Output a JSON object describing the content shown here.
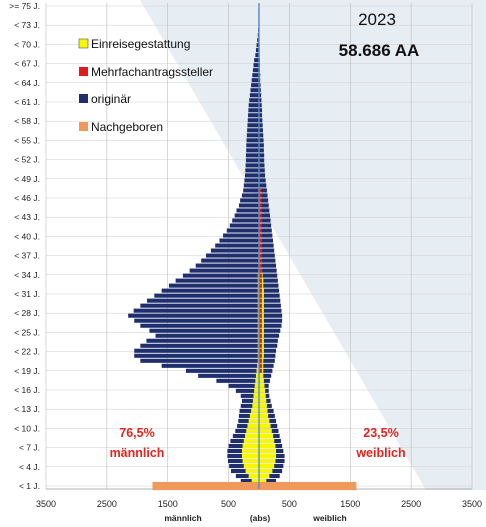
{
  "chart_data": {
    "type": "bar",
    "subtype": "population-pyramid",
    "year": "2023",
    "total": "58.686 AA",
    "y_tick_labels": [
      ">= 75 J.",
      "< 73 J.",
      "< 70 J.",
      "< 67 J.",
      "< 64 J.",
      "< 61 J.",
      "< 58 J.",
      "< 55 J.",
      "< 52 J.",
      "< 49 J.",
      "< 46 J.",
      "< 43 J.",
      "< 40 J.",
      "< 37 J.",
      "< 34 J.",
      "< 31 J.",
      "< 28 J.",
      "< 25 J.",
      "< 22 J.",
      "< 19 J.",
      "< 16 J.",
      "< 13 J.",
      "< 10 J.",
      "< 7 J.",
      "< 4 J.",
      "< 1 J."
    ],
    "x_tick_labels": [
      "3500",
      "2500",
      "1500",
      "500",
      "500",
      "1500",
      "2500",
      "3500"
    ],
    "x_ticks": [
      -3500,
      -2500,
      -1500,
      -500,
      500,
      1500,
      2500,
      3500
    ],
    "xlim": [
      -3500,
      3500
    ],
    "x_titles": {
      "left": "männlich",
      "center": "(abs)",
      "right": "weiblich"
    },
    "legend": [
      {
        "label": "Einreisegestattung",
        "color": "#f7f700"
      },
      {
        "label": "Mehrfachantragssteller",
        "color": "#e01b1b"
      },
      {
        "label": "originär",
        "color": "#1f2f6e"
      },
      {
        "label": "Nachgeboren",
        "color": "#f0995a"
      }
    ],
    "shares": {
      "male_pct": "76,5%",
      "male_label": "männlich",
      "female_pct": "23,5%",
      "female_label": "weiblich"
    },
    "colors": {
      "originaer": "#1f2f6e",
      "einreise": "#f7f700",
      "mehrfach": "#e01b1b",
      "nachgeboren": "#f0995a",
      "axis": "#5a8fc0"
    },
    "series": [
      {
        "name": "originär",
        "side": "male",
        "values": [
          0,
          10,
          10,
          10,
          10,
          15,
          20,
          30,
          40,
          50,
          60,
          80,
          90,
          100,
          110,
          120,
          130,
          140,
          150,
          160,
          170,
          175,
          180,
          185,
          190,
          195,
          200,
          205,
          210,
          210,
          215,
          215,
          220,
          225,
          230,
          240,
          250,
          260,
          280,
          310,
          330,
          370,
          400,
          440,
          480,
          530,
          590,
          650,
          720,
          790,
          870,
          950,
          1040,
          1140,
          1250,
          1370,
          1480,
          1600,
          1720,
          1840,
          1950,
          2060,
          2150,
          2050,
          1950,
          1800,
          1700,
          1850,
          1950,
          2050,
          2050,
          1950,
          1600,
          1200,
          1000,
          700,
          500,
          380,
          300,
          280,
          300,
          320,
          330,
          340,
          360,
          390,
          430,
          470,
          500,
          520,
          520,
          510,
          490,
          460,
          380,
          300,
          200
        ]
      },
      {
        "name": "originär",
        "side": "female",
        "values": [
          0,
          5,
          5,
          5,
          5,
          5,
          5,
          5,
          10,
          10,
          10,
          15,
          15,
          15,
          20,
          20,
          25,
          30,
          35,
          40,
          45,
          50,
          50,
          55,
          60,
          65,
          70,
          75,
          80,
          80,
          85,
          85,
          90,
          95,
          100,
          110,
          120,
          130,
          140,
          150,
          160,
          170,
          180,
          190,
          200,
          210,
          220,
          230,
          240,
          250,
          260,
          270,
          280,
          290,
          300,
          310,
          320,
          330,
          340,
          350,
          360,
          370,
          380,
          380,
          370,
          350,
          330,
          310,
          300,
          280,
          270,
          260,
          240,
          220,
          200,
          180,
          160,
          160,
          170,
          190,
          210,
          240,
          260,
          280,
          300,
          320,
          340,
          360,
          380,
          400,
          420,
          420,
          400,
          380,
          340,
          280,
          200
        ]
      },
      {
        "name": "Einreisegestattung",
        "side": "male",
        "values": [
          0,
          0,
          0,
          0,
          0,
          0,
          0,
          0,
          0,
          0,
          0,
          0,
          0,
          0,
          0,
          0,
          0,
          0,
          0,
          0,
          0,
          0,
          0,
          0,
          0,
          0,
          0,
          0,
          0,
          0,
          0,
          0,
          0,
          0,
          0,
          0,
          0,
          0,
          0,
          0,
          0,
          0,
          0,
          0,
          0,
          0,
          0,
          0,
          0,
          0,
          10,
          10,
          10,
          10,
          20,
          20,
          20,
          20,
          20,
          20,
          20,
          20,
          20,
          20,
          20,
          20,
          20,
          20,
          20,
          20,
          20,
          20,
          30,
          40,
          50,
          60,
          70,
          80,
          90,
          100,
          110,
          130,
          150,
          170,
          190,
          210,
          230,
          250,
          270,
          280,
          280,
          270,
          250,
          220,
          170,
          120,
          80
        ]
      },
      {
        "name": "Einreisegestattung",
        "side": "female",
        "values": [
          0,
          0,
          0,
          0,
          0,
          0,
          0,
          0,
          0,
          0,
          0,
          0,
          0,
          0,
          0,
          0,
          0,
          0,
          0,
          0,
          0,
          0,
          0,
          0,
          0,
          0,
          0,
          0,
          0,
          0,
          0,
          0,
          0,
          0,
          0,
          0,
          0,
          0,
          0,
          0,
          0,
          0,
          0,
          0,
          0,
          0,
          0,
          0,
          20,
          20,
          30,
          30,
          40,
          50,
          60,
          70,
          70,
          80,
          80,
          80,
          80,
          80,
          80,
          80,
          80,
          80,
          80,
          80,
          80,
          80,
          80,
          70,
          70,
          70,
          70,
          80,
          90,
          100,
          110,
          120,
          130,
          140,
          150,
          170,
          190,
          210,
          230,
          250,
          270,
          280,
          280,
          270,
          250,
          220,
          170,
          120,
          80
        ]
      },
      {
        "name": "Mehrfachantragssteller",
        "side": "male",
        "values": [
          0,
          0,
          0,
          0,
          0,
          0,
          0,
          0,
          0,
          0,
          0,
          0,
          0,
          0,
          0,
          0,
          0,
          0,
          0,
          0,
          0,
          0,
          0,
          0,
          0,
          0,
          0,
          0,
          0,
          0,
          0,
          0,
          0,
          0,
          0,
          0,
          0,
          0,
          0,
          0,
          0,
          0,
          0,
          0,
          0,
          0,
          0,
          0,
          0,
          0,
          0,
          0,
          0,
          0,
          0,
          0,
          0,
          0,
          0,
          0,
          0,
          0,
          0,
          0,
          0,
          0,
          0,
          0,
          0,
          0,
          0,
          0,
          0,
          0,
          0,
          0,
          0,
          0,
          0,
          0,
          0,
          0,
          0,
          0,
          0,
          0,
          0,
          0,
          0,
          0,
          0,
          0,
          0,
          0,
          0,
          0,
          0
        ]
      },
      {
        "name": "Mehrfachantragssteller",
        "side": "female",
        "values": [
          0,
          0,
          0,
          0,
          0,
          0,
          0,
          0,
          0,
          0,
          0,
          0,
          0,
          0,
          0,
          0,
          0,
          0,
          0,
          0,
          0,
          0,
          0,
          0,
          0,
          0,
          0,
          0,
          0,
          0,
          0,
          0,
          0,
          0,
          0,
          0,
          0,
          30,
          30,
          30,
          30,
          30,
          35,
          35,
          35,
          35,
          35,
          40,
          40,
          40,
          40,
          40,
          40,
          40,
          40,
          40,
          40,
          40,
          40,
          40,
          40,
          40,
          40,
          40,
          40,
          40,
          40,
          40,
          40,
          40,
          40,
          40,
          40,
          40,
          0,
          0,
          0,
          0,
          0,
          0,
          0,
          0,
          0,
          0,
          0,
          0,
          0,
          0,
          0,
          0,
          0,
          0,
          0,
          0,
          0,
          0,
          0
        ]
      },
      {
        "name": "Nachgeboren",
        "side": "male",
        "values": [
          0,
          0,
          0,
          0,
          0,
          0,
          0,
          0,
          0,
          0,
          0,
          0,
          0,
          0,
          0,
          0,
          0,
          0,
          0,
          0,
          0,
          0,
          0,
          0,
          0,
          0,
          0,
          0,
          0,
          0,
          0,
          0,
          0,
          0,
          0,
          0,
          0,
          0,
          0,
          0,
          0,
          0,
          0,
          0,
          0,
          0,
          0,
          0,
          0,
          0,
          0,
          0,
          0,
          0,
          0,
          0,
          0,
          0,
          0,
          0,
          0,
          0,
          0,
          0,
          0,
          0,
          0,
          0,
          0,
          0,
          0,
          0,
          0,
          0,
          0,
          0,
          0,
          0,
          0,
          0,
          0,
          0,
          0,
          0,
          0,
          0,
          0,
          0,
          0,
          0,
          0,
          0,
          0,
          0,
          0,
          0,
          1750
        ]
      },
      {
        "name": "Nachgeboren",
        "side": "female",
        "values": [
          0,
          0,
          0,
          0,
          0,
          0,
          0,
          0,
          0,
          0,
          0,
          0,
          0,
          0,
          0,
          0,
          0,
          0,
          0,
          0,
          0,
          0,
          0,
          0,
          0,
          0,
          0,
          0,
          0,
          0,
          0,
          0,
          0,
          0,
          0,
          0,
          0,
          0,
          0,
          0,
          0,
          0,
          0,
          0,
          0,
          0,
          0,
          0,
          0,
          0,
          0,
          0,
          0,
          0,
          0,
          0,
          0,
          0,
          0,
          0,
          0,
          0,
          0,
          0,
          0,
          0,
          0,
          0,
          0,
          0,
          0,
          0,
          0,
          0,
          0,
          0,
          0,
          0,
          0,
          0,
          0,
          0,
          0,
          0,
          0,
          0,
          0,
          0,
          0,
          0,
          0,
          0,
          0,
          0,
          0,
          0,
          1600
        ]
      }
    ]
  }
}
